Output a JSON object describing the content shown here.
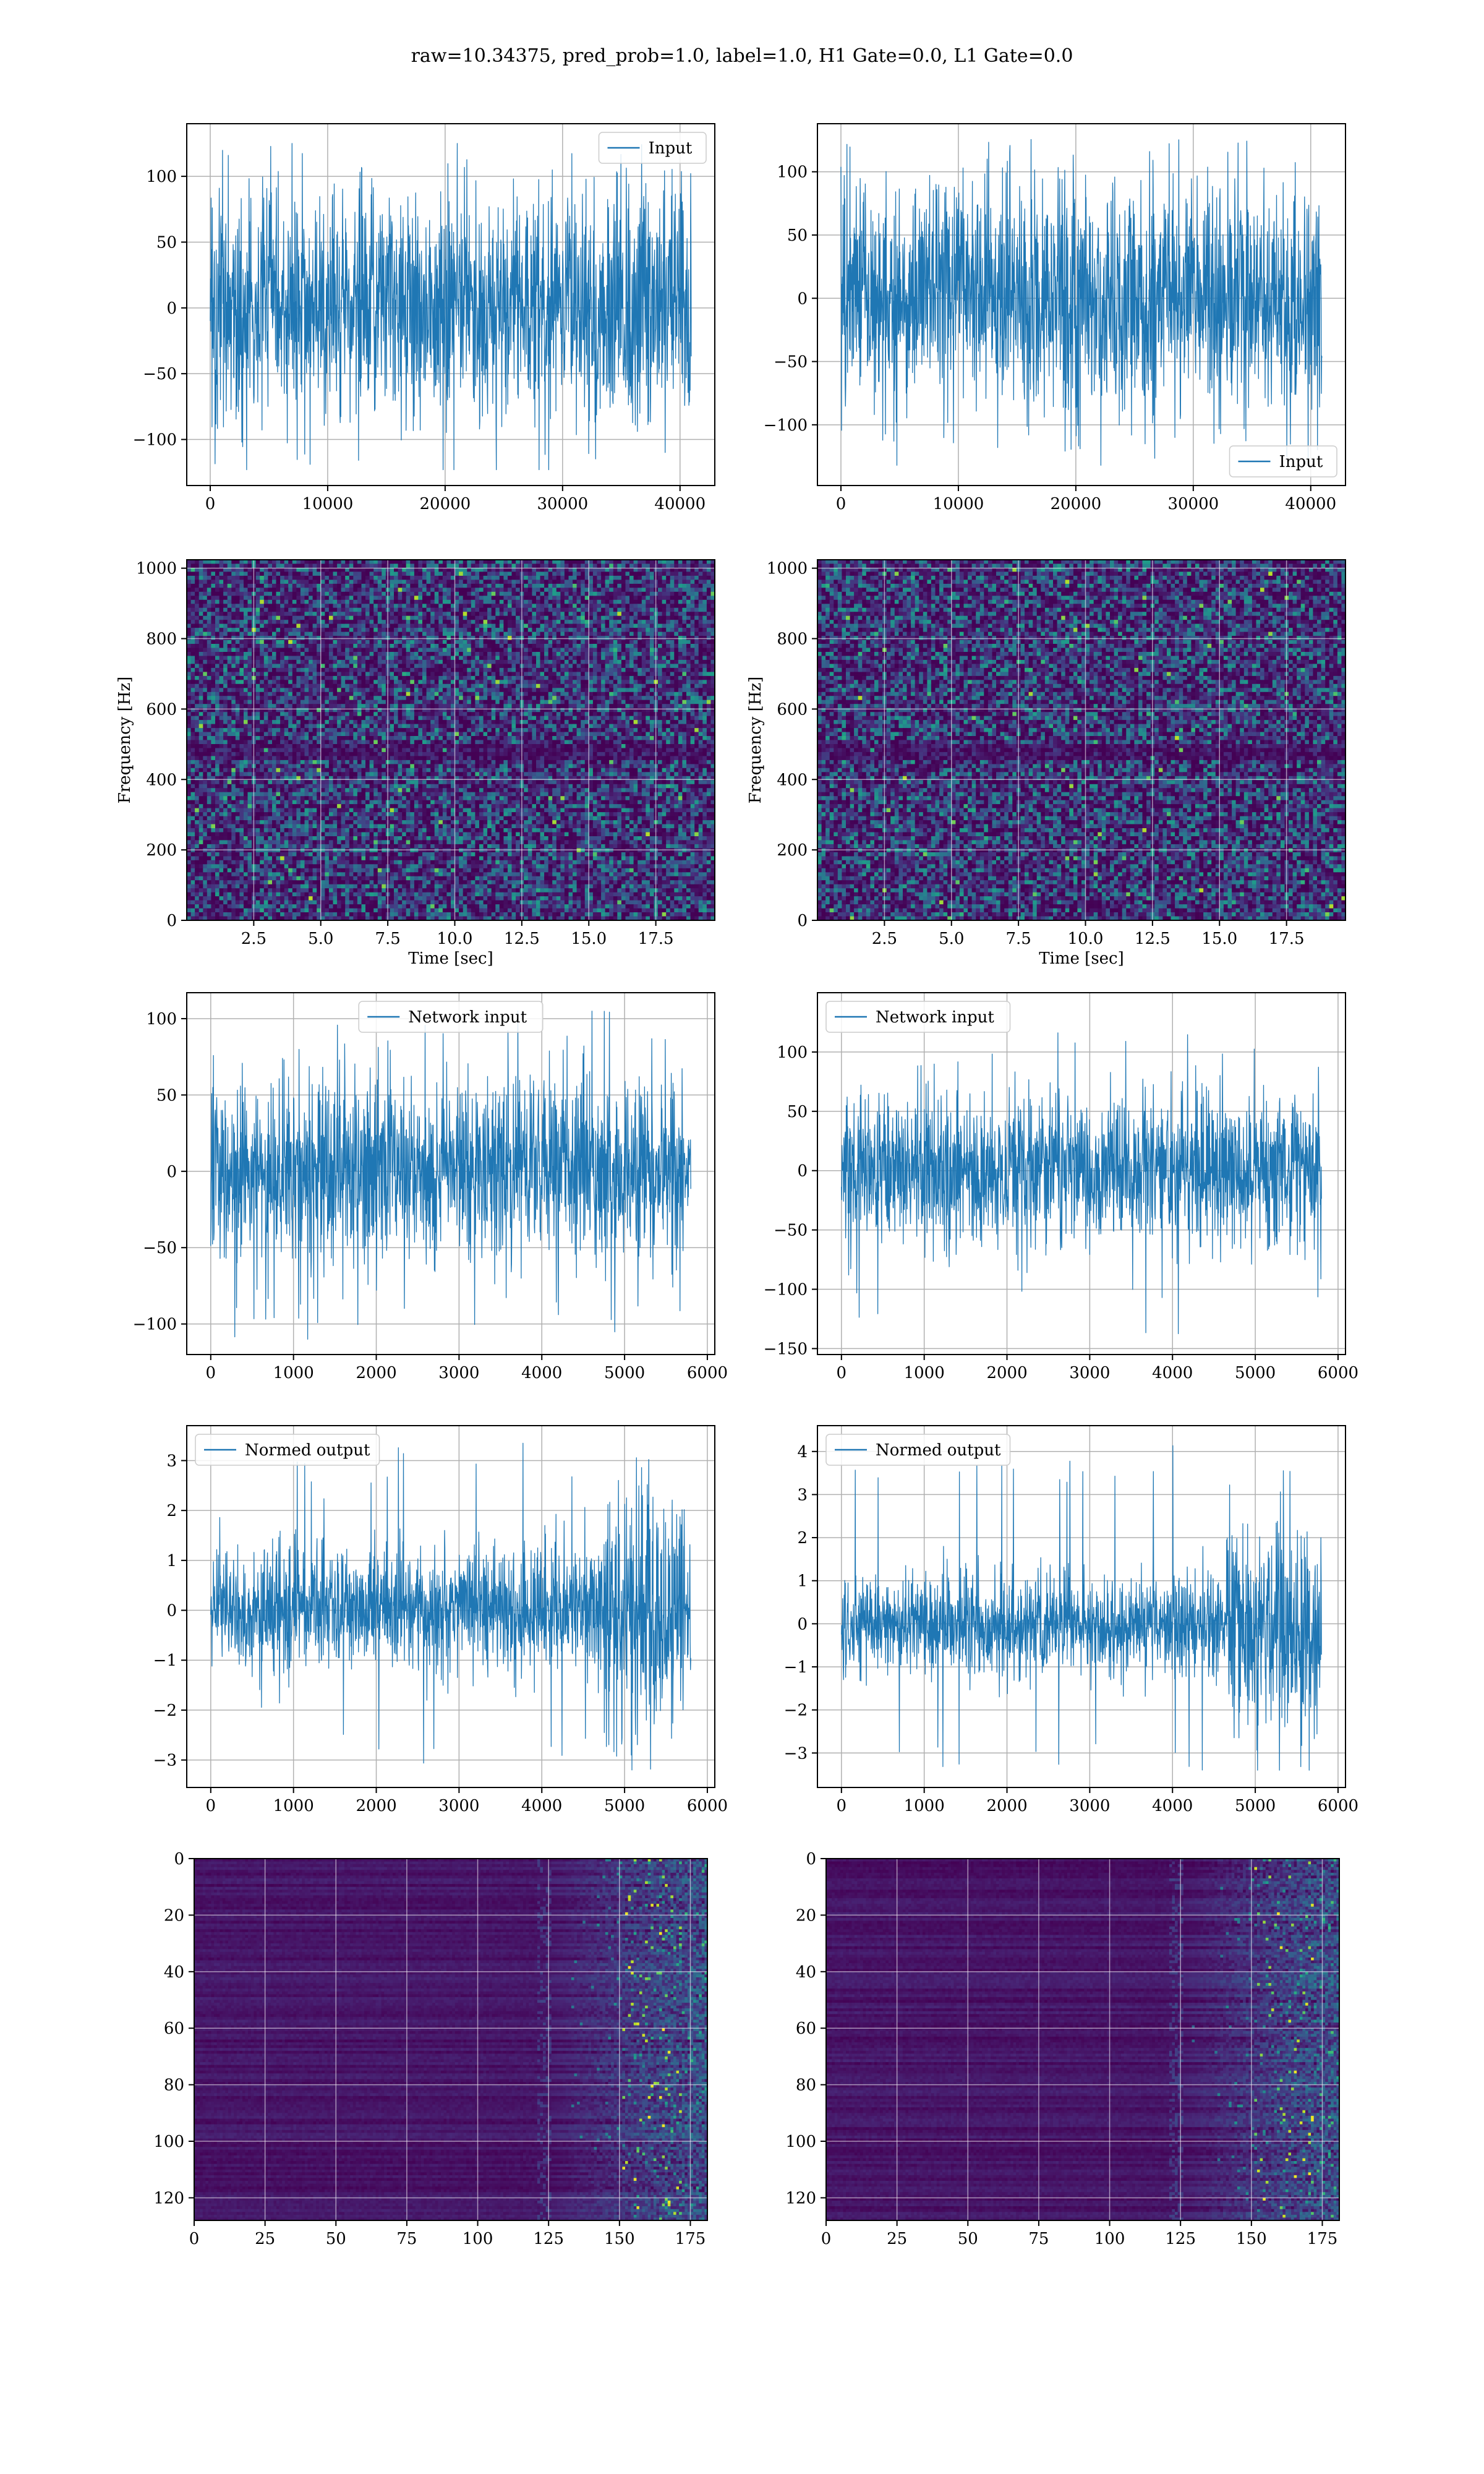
{
  "figure": {
    "suptitle": "raw=10.34375, pred_prob=1.0, label=1.0, H1 Gate=0.0, L1 Gate=0.0"
  },
  "colors": {
    "line": "#1f77b4",
    "grid": "#b0b0b0",
    "axes": "#000000",
    "viridis_low": "#440154",
    "viridis_high": "#fde725"
  },
  "chart_data": [
    {
      "id": "h1-input",
      "type": "line",
      "style": "noise",
      "xlim": [
        -2000,
        42960
      ],
      "ylim": [
        -135,
        140
      ],
      "xticks": [
        0,
        10000,
        20000,
        30000,
        40000
      ],
      "yticks": [
        -100,
        -50,
        0,
        50,
        100
      ],
      "xticklabels": [
        "0",
        "10000",
        "20000",
        "30000",
        "40000"
      ],
      "yticklabels": [
        "−100",
        "−50",
        "0",
        "50",
        "100"
      ],
      "xlabel": "",
      "ylabel": "",
      "series": [
        {
          "name": "Input",
          "x_range": [
            0,
            40960
          ],
          "amplitude": 45,
          "peak_max": 125,
          "peak_min": -123
        }
      ],
      "legend": "upper right",
      "grid": true
    },
    {
      "id": "l1-input",
      "type": "line",
      "style": "noise",
      "xlim": [
        -2000,
        42960
      ],
      "ylim": [
        -148,
        138
      ],
      "xticks": [
        0,
        10000,
        20000,
        30000,
        40000
      ],
      "yticks": [
        -100,
        -50,
        0,
        50,
        100
      ],
      "xticklabels": [
        "0",
        "10000",
        "20000",
        "30000",
        "40000"
      ],
      "yticklabels": [
        "−100",
        "−50",
        "0",
        "50",
        "100"
      ],
      "xlabel": "",
      "ylabel": "",
      "series": [
        {
          "name": "Input",
          "x_range": [
            0,
            40960
          ],
          "amplitude": 45,
          "peak_max": 128,
          "peak_min": -132
        }
      ],
      "legend": "lower right",
      "grid": true
    },
    {
      "id": "h1-spectrogram",
      "type": "heatmap",
      "style": "spectrogram",
      "xlim": [
        0,
        19.7
      ],
      "ylim": [
        0,
        1024
      ],
      "xticks": [
        2.5,
        5.0,
        7.5,
        10.0,
        12.5,
        15.0,
        17.5
      ],
      "yticks": [
        0,
        200,
        400,
        600,
        800,
        1000
      ],
      "xticklabels": [
        "2.5",
        "5.0",
        "7.5",
        "10.0",
        "12.5",
        "15.0",
        "17.5"
      ],
      "yticklabels": [
        "0",
        "200",
        "400",
        "600",
        "800",
        "1000"
      ],
      "xlabel": "Time [sec]",
      "ylabel": "Frequency [Hz]",
      "colormap": "viridis",
      "grid": true
    },
    {
      "id": "l1-spectrogram",
      "type": "heatmap",
      "style": "spectrogram",
      "xlim": [
        0,
        19.7
      ],
      "ylim": [
        0,
        1024
      ],
      "xticks": [
        2.5,
        5.0,
        7.5,
        10.0,
        12.5,
        15.0,
        17.5
      ],
      "yticks": [
        0,
        200,
        400,
        600,
        800,
        1000
      ],
      "xticklabels": [
        "2.5",
        "5.0",
        "7.5",
        "10.0",
        "12.5",
        "15.0",
        "17.5"
      ],
      "yticklabels": [
        "0",
        "200",
        "400",
        "600",
        "800",
        "1000"
      ],
      "xlabel": "Time [sec]",
      "ylabel": "Frequency [Hz]",
      "colormap": "viridis",
      "grid": true
    },
    {
      "id": "h1-network-input",
      "type": "line",
      "style": "noise",
      "xlim": [
        -290,
        6090
      ],
      "ylim": [
        -120,
        117
      ],
      "xticks": [
        0,
        1000,
        2000,
        3000,
        4000,
        5000,
        6000
      ],
      "yticks": [
        -100,
        -50,
        0,
        50,
        100
      ],
      "xticklabels": [
        "0",
        "1000",
        "2000",
        "3000",
        "4000",
        "5000",
        "6000"
      ],
      "yticklabels": [
        "−100",
        "−50",
        "0",
        "50",
        "100"
      ],
      "xlabel": "",
      "ylabel": "",
      "series": [
        {
          "name": "Network input",
          "x_range": [
            0,
            5800
          ],
          "amplitude": 30,
          "peak_max": 105,
          "peak_min": -110,
          "taper_end": true
        }
      ],
      "legend": "upper center",
      "grid": true
    },
    {
      "id": "l1-network-input",
      "type": "line",
      "style": "noise",
      "xlim": [
        -290,
        6090
      ],
      "ylim": [
        -155,
        150
      ],
      "xticks": [
        0,
        1000,
        2000,
        3000,
        4000,
        5000,
        6000
      ],
      "yticks": [
        -150,
        -100,
        -50,
        0,
        50,
        100
      ],
      "xticklabels": [
        "0",
        "1000",
        "2000",
        "3000",
        "4000",
        "5000",
        "6000"
      ],
      "yticklabels": [
        "−150",
        "−100",
        "−50",
        "0",
        "50",
        "100"
      ],
      "xlabel": "",
      "ylabel": "",
      "series": [
        {
          "name": "Network input",
          "x_range": [
            0,
            5800
          ],
          "amplitude": 32,
          "peak_max": 128,
          "peak_min": -140
        }
      ],
      "legend": "upper left",
      "grid": true
    },
    {
      "id": "h1-normed-output",
      "type": "line",
      "style": "noise",
      "xlim": [
        -290,
        6090
      ],
      "ylim": [
        -3.55,
        3.7
      ],
      "xticks": [
        0,
        1000,
        2000,
        3000,
        4000,
        5000,
        6000
      ],
      "yticks": [
        -3,
        -2,
        -1,
        0,
        1,
        2,
        3
      ],
      "xticklabels": [
        "0",
        "1000",
        "2000",
        "3000",
        "4000",
        "5000",
        "6000"
      ],
      "yticklabels": [
        "−3",
        "−2",
        "−1",
        "0",
        "1",
        "2",
        "3"
      ],
      "xlabel": "",
      "ylabel": "",
      "series": [
        {
          "name": "Normed output",
          "x_range": [
            0,
            5800
          ],
          "amplitude": 0.6,
          "peak_max": 3.4,
          "peak_min": -3.2,
          "burst": [
            4750,
            5800
          ],
          "taper_end": true
        }
      ],
      "legend": "upper left",
      "grid": true
    },
    {
      "id": "l1-normed-output",
      "type": "line",
      "style": "noise",
      "xlim": [
        -290,
        6090
      ],
      "ylim": [
        -3.8,
        4.6
      ],
      "xticks": [
        0,
        1000,
        2000,
        3000,
        4000,
        5000,
        6000
      ],
      "yticks": [
        -3,
        -2,
        -1,
        0,
        1,
        2,
        3,
        4
      ],
      "xticklabels": [
        "0",
        "1000",
        "2000",
        "3000",
        "4000",
        "5000",
        "6000"
      ],
      "yticklabels": [
        "−3",
        "−2",
        "−1",
        "0",
        "1",
        "2",
        "3",
        "4"
      ],
      "xlabel": "",
      "ylabel": "",
      "series": [
        {
          "name": "Normed output",
          "x_range": [
            0,
            5800
          ],
          "amplitude": 0.55,
          "peak_max": 4.2,
          "peak_min": -3.4,
          "burst": [
            4650,
            5800
          ]
        }
      ],
      "legend": "upper left",
      "grid": true
    },
    {
      "id": "h1-feature-map",
      "type": "heatmap",
      "style": "feature",
      "xlim": [
        0,
        181
      ],
      "ylim": [
        128,
        0
      ],
      "xticks": [
        0,
        25,
        50,
        75,
        100,
        125,
        150,
        175
      ],
      "yticks": [
        0,
        20,
        40,
        60,
        80,
        100,
        120
      ],
      "xticklabels": [
        "0",
        "25",
        "50",
        "75",
        "100",
        "125",
        "150",
        "175"
      ],
      "yticklabels": [
        "0",
        "20",
        "40",
        "60",
        "80",
        "100",
        "120"
      ],
      "xlabel": "",
      "ylabel": "",
      "colormap": "viridis",
      "grid": true
    },
    {
      "id": "l1-feature-map",
      "type": "heatmap",
      "style": "feature",
      "xlim": [
        0,
        181
      ],
      "ylim": [
        128,
        0
      ],
      "xticks": [
        0,
        25,
        50,
        75,
        100,
        125,
        150,
        175
      ],
      "yticks": [
        0,
        20,
        40,
        60,
        80,
        100,
        120
      ],
      "xticklabels": [
        "0",
        "25",
        "50",
        "75",
        "100",
        "125",
        "150",
        "175"
      ],
      "yticklabels": [
        "0",
        "20",
        "40",
        "60",
        "80",
        "100",
        "120"
      ],
      "xlabel": "",
      "ylabel": "",
      "colormap": "viridis",
      "grid": true
    }
  ]
}
